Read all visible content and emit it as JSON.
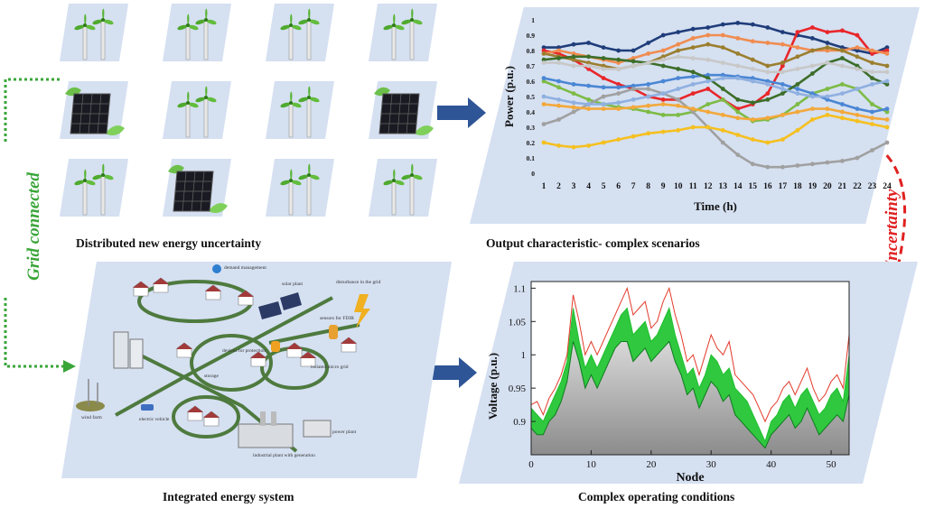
{
  "captions": {
    "distributed": "Distributed new energy uncertainty",
    "output": "Output characteristic- complex scenarios",
    "integrated": "Integrated energy system",
    "complex": "Complex operating conditions"
  },
  "side_labels": {
    "grid_connected": "Grid connected",
    "uncertainty": "Uncertainty"
  },
  "tile_grid": [
    [
      "wind",
      "wind",
      "wind",
      "wind"
    ],
    [
      "solar",
      "wind",
      "wind",
      "solar"
    ],
    [
      "wind",
      "solar",
      "wind",
      "wind"
    ]
  ],
  "colors": {
    "panel_bg": "#d5e0f1",
    "arrow_blue": "#2e5596",
    "grid_green": "#3aa539",
    "uncertainty_red": "#e02020",
    "network_green": "#4e7a3e"
  },
  "ies_labels": {
    "demand": "demand management",
    "solar_plant": "solar plant",
    "disturbance": "disturbance in the grid",
    "sensors": "sensors for FDIR",
    "devices": "devices for protection",
    "storage": "storage",
    "isolated": "isolated micro grid",
    "wind": "wind farm",
    "ev": "electric vehicle",
    "industrial": "industrial plant with generation",
    "power": "power plant"
  },
  "chart_data": [
    {
      "type": "line",
      "xlabel": "Time (h)",
      "ylabel": "Power (p.u.)",
      "x": [
        1,
        2,
        3,
        4,
        5,
        6,
        7,
        8,
        9,
        10,
        11,
        12,
        13,
        14,
        15,
        16,
        17,
        18,
        19,
        20,
        21,
        22,
        23,
        24
      ],
      "ylim": [
        0,
        1
      ],
      "yticks": [
        0,
        0.1,
        0.2,
        0.3,
        0.4,
        0.5,
        0.6,
        0.7,
        0.8,
        0.9,
        1
      ],
      "legend": "none",
      "series": [
        {
          "color": "#1f3d7a",
          "values": [
            0.82,
            0.82,
            0.84,
            0.85,
            0.82,
            0.8,
            0.8,
            0.85,
            0.9,
            0.92,
            0.94,
            0.95,
            0.97,
            0.98,
            0.97,
            0.95,
            0.92,
            0.9,
            0.88,
            0.85,
            0.82,
            0.8,
            0.78,
            0.82
          ]
        },
        {
          "color": "#e8262a",
          "values": [
            0.8,
            0.78,
            0.74,
            0.68,
            0.62,
            0.58,
            0.55,
            0.5,
            0.48,
            0.48,
            0.52,
            0.55,
            0.48,
            0.42,
            0.45,
            0.52,
            0.7,
            0.92,
            0.95,
            0.92,
            0.93,
            0.9,
            0.78,
            0.8
          ]
        },
        {
          "color": "#f08c50",
          "values": [
            0.78,
            0.8,
            0.78,
            0.76,
            0.74,
            0.72,
            0.75,
            0.78,
            0.8,
            0.84,
            0.88,
            0.9,
            0.9,
            0.88,
            0.86,
            0.85,
            0.84,
            0.82,
            0.8,
            0.8,
            0.8,
            0.82,
            0.8,
            0.78
          ]
        },
        {
          "color": "#7dbb45",
          "values": [
            0.6,
            0.56,
            0.52,
            0.48,
            0.45,
            0.43,
            0.42,
            0.4,
            0.38,
            0.38,
            0.4,
            0.45,
            0.48,
            0.4,
            0.34,
            0.35,
            0.38,
            0.45,
            0.52,
            0.55,
            0.58,
            0.55,
            0.45,
            0.4
          ]
        },
        {
          "color": "#4a86d4",
          "values": [
            0.62,
            0.6,
            0.58,
            0.57,
            0.56,
            0.56,
            0.57,
            0.58,
            0.6,
            0.62,
            0.63,
            0.64,
            0.64,
            0.63,
            0.62,
            0.6,
            0.58,
            0.55,
            0.52,
            0.48,
            0.45,
            0.42,
            0.4,
            0.42
          ]
        },
        {
          "color": "#a0a0a0",
          "values": [
            0.32,
            0.35,
            0.4,
            0.45,
            0.5,
            0.52,
            0.55,
            0.55,
            0.52,
            0.48,
            0.4,
            0.3,
            0.2,
            0.12,
            0.06,
            0.04,
            0.04,
            0.05,
            0.06,
            0.07,
            0.08,
            0.1,
            0.15,
            0.2
          ]
        },
        {
          "color": "#f5c020",
          "values": [
            0.2,
            0.18,
            0.17,
            0.18,
            0.2,
            0.22,
            0.24,
            0.26,
            0.27,
            0.28,
            0.3,
            0.3,
            0.28,
            0.25,
            0.22,
            0.2,
            0.22,
            0.28,
            0.35,
            0.38,
            0.36,
            0.34,
            0.32,
            0.3
          ]
        },
        {
          "color": "#f3a83b",
          "values": [
            0.45,
            0.44,
            0.43,
            0.42,
            0.42,
            0.42,
            0.43,
            0.44,
            0.45,
            0.44,
            0.42,
            0.4,
            0.38,
            0.36,
            0.35,
            0.36,
            0.38,
            0.4,
            0.42,
            0.42,
            0.4,
            0.38,
            0.36,
            0.35
          ]
        },
        {
          "color": "#9b7e2e",
          "values": [
            0.78,
            0.76,
            0.74,
            0.72,
            0.7,
            0.68,
            0.7,
            0.72,
            0.76,
            0.8,
            0.82,
            0.84,
            0.82,
            0.78,
            0.74,
            0.7,
            0.72,
            0.76,
            0.8,
            0.82,
            0.8,
            0.76,
            0.72,
            0.7
          ]
        },
        {
          "color": "#3c6e2a",
          "values": [
            0.74,
            0.75,
            0.76,
            0.76,
            0.75,
            0.74,
            0.73,
            0.72,
            0.7,
            0.68,
            0.66,
            0.62,
            0.55,
            0.48,
            0.46,
            0.48,
            0.52,
            0.58,
            0.65,
            0.72,
            0.75,
            0.7,
            0.62,
            0.58
          ]
        },
        {
          "color": "#8fb0e0",
          "values": [
            0.5,
            0.48,
            0.46,
            0.45,
            0.45,
            0.46,
            0.48,
            0.5,
            0.52,
            0.55,
            0.58,
            0.6,
            0.62,
            0.62,
            0.6,
            0.58,
            0.55,
            0.52,
            0.5,
            0.5,
            0.52,
            0.55,
            0.58,
            0.6
          ]
        },
        {
          "color": "#c8c8c8",
          "values": [
            0.72,
            0.72,
            0.7,
            0.7,
            0.68,
            0.68,
            0.7,
            0.72,
            0.74,
            0.76,
            0.75,
            0.74,
            0.72,
            0.7,
            0.68,
            0.66,
            0.66,
            0.68,
            0.7,
            0.72,
            0.7,
            0.68,
            0.66,
            0.66
          ]
        }
      ]
    },
    {
      "type": "area",
      "xlabel": "Node",
      "ylabel": "Voltage (p.u.)",
      "xlim": [
        0,
        53
      ],
      "ylim": [
        0.85,
        1.11
      ],
      "xticks": [
        0,
        10,
        20,
        30,
        40,
        50
      ],
      "yticks": [
        0.9,
        0.95,
        1,
        1.05,
        1.1
      ],
      "legend": "none",
      "series": [
        {
          "name": "",
          "color": "#e23a2a",
          "values": [
            0.925,
            0.93,
            0.91,
            0.935,
            0.95,
            0.97,
            1.0,
            1.09,
            1.05,
            1.0,
            1.02,
            1.0,
            1.02,
            1.04,
            1.06,
            1.08,
            1.1,
            1.06,
            1.07,
            1.08,
            1.04,
            1.05,
            1.08,
            1.1,
            1.06,
            1.03,
            0.99,
            1.0,
            0.97,
            1.0,
            1.03,
            1.01,
            1.0,
            1.02,
            0.97,
            0.96,
            0.95,
            0.94,
            0.92,
            0.9,
            0.92,
            0.93,
            0.95,
            0.96,
            0.94,
            0.96,
            0.98,
            0.95,
            0.93,
            0.94,
            0.96,
            0.97,
            0.95,
            1.03
          ]
        },
        {
          "name": "",
          "color": "#1fbf2f",
          "values": [
            0.92,
            0.91,
            0.9,
            0.92,
            0.94,
            0.96,
            0.99,
            1.07,
            1.02,
            0.98,
            1.0,
            0.98,
            1.0,
            1.02,
            1.04,
            1.06,
            1.07,
            1.03,
            1.04,
            1.05,
            1.02,
            1.03,
            1.05,
            1.07,
            1.03,
            1.0,
            0.97,
            0.98,
            0.95,
            0.97,
            1.0,
            0.99,
            0.97,
            0.98,
            0.95,
            0.94,
            0.93,
            0.91,
            0.89,
            0.87,
            0.9,
            0.91,
            0.93,
            0.94,
            0.92,
            0.94,
            0.95,
            0.93,
            0.91,
            0.92,
            0.94,
            0.95,
            0.93,
            1.0
          ]
        },
        {
          "name": "",
          "color": "#0f7a1f",
          "values": [
            0.89,
            0.88,
            0.88,
            0.9,
            0.91,
            0.93,
            0.96,
            1.02,
            0.99,
            0.95,
            0.97,
            0.95,
            0.97,
            0.99,
            1.01,
            1.02,
            1.02,
            0.99,
            1.0,
            1.01,
            0.99,
            1.0,
            1.01,
            1.02,
            0.99,
            0.97,
            0.94,
            0.95,
            0.92,
            0.94,
            0.96,
            0.95,
            0.93,
            0.94,
            0.91,
            0.9,
            0.89,
            0.88,
            0.87,
            0.86,
            0.88,
            0.89,
            0.9,
            0.91,
            0.89,
            0.9,
            0.92,
            0.9,
            0.88,
            0.89,
            0.9,
            0.91,
            0.9,
            0.94
          ]
        }
      ]
    }
  ]
}
